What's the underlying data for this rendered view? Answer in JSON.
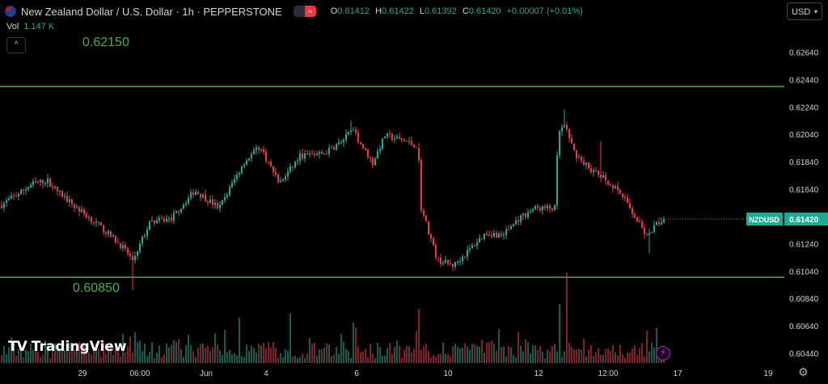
{
  "header": {
    "title": "New Zealand Dollar / U.S. Dollar · 1h · PEPPERSTONE",
    "ohlc": [
      {
        "k": "O",
        "v": "0.61412"
      },
      {
        "k": "H",
        "v": "0.61422"
      },
      {
        "k": "L",
        "v": "0.61392"
      },
      {
        "k": "C",
        "v": "0.61420"
      }
    ],
    "change": "+0.00007 (+0.01%)",
    "pill_icon": "≈"
  },
  "volume": {
    "label": "Vol",
    "value": "1.147 K"
  },
  "collapse_icon": "chevron-up-icon",
  "collapse_glyph": "^",
  "currency": {
    "label": "USD",
    "chevron": "▾"
  },
  "logo": {
    "mark": "TV",
    "text": "TradingView"
  },
  "colors": {
    "up": "#22ab94",
    "down": "#f23645",
    "level": "#4caf50",
    "badge": "#22ab94",
    "text": "#d1d4dc",
    "muted": "#b2b5be"
  },
  "chart_data": {
    "type": "candlestick",
    "symbol": "NZDUSD",
    "last_price": "0.61420",
    "price_axis": {
      "range": [
        0.6035,
        0.6288
      ],
      "ticks": [
        "0.60440",
        "0.60640",
        "0.60840",
        "0.61040",
        "0.61240",
        "0.61440",
        "0.61640",
        "0.61840",
        "0.62040",
        "0.62240",
        "0.62440",
        "0.62640"
      ]
    },
    "x_axis": {
      "labels": [
        "29",
        "06:00",
        "Jun",
        "4",
        "6",
        "10",
        "12",
        "12:00",
        "17",
        "19"
      ]
    },
    "levels": [
      {
        "price": 0.6215,
        "label": "0.62150"
      },
      {
        "price": 0.6085,
        "label": "0.60850"
      }
    ],
    "close_path_anchors": [
      [
        0,
        0.6152
      ],
      [
        20,
        0.616
      ],
      [
        40,
        0.6168
      ],
      [
        58,
        0.617
      ],
      [
        67,
        0.6164
      ],
      [
        90,
        0.6152
      ],
      [
        120,
        0.6138
      ],
      [
        150,
        0.6122
      ],
      [
        163,
        0.6112
      ],
      [
        185,
        0.614
      ],
      [
        210,
        0.6142
      ],
      [
        240,
        0.6163
      ],
      [
        270,
        0.615
      ],
      [
        300,
        0.6183
      ],
      [
        320,
        0.6195
      ],
      [
        345,
        0.6168
      ],
      [
        370,
        0.6188
      ],
      [
        400,
        0.619
      ],
      [
        420,
        0.6198
      ],
      [
        435,
        0.6207
      ],
      [
        460,
        0.6183
      ],
      [
        475,
        0.6203
      ],
      [
        500,
        0.6199
      ],
      [
        516,
        0.6195
      ],
      [
        520,
        0.615
      ],
      [
        540,
        0.6112
      ],
      [
        560,
        0.6108
      ],
      [
        580,
        0.612
      ],
      [
        600,
        0.6132
      ],
      [
        620,
        0.613
      ],
      [
        640,
        0.6142
      ],
      [
        660,
        0.615
      ],
      [
        686,
        0.615
      ],
      [
        689,
        0.6205
      ],
      [
        697,
        0.621
      ],
      [
        710,
        0.619
      ],
      [
        730,
        0.6178
      ],
      [
        750,
        0.617
      ],
      [
        770,
        0.6158
      ],
      [
        790,
        0.6138
      ],
      [
        800,
        0.6128
      ],
      [
        810,
        0.6138
      ],
      [
        820,
        0.6142
      ]
    ],
    "spikes": [
      {
        "x": 433,
        "high": 0.6214
      },
      {
        "x": 697,
        "high": 0.6222
      },
      {
        "x": 743,
        "high": 0.6199
      },
      {
        "x": 803,
        "low": 0.6117
      },
      {
        "x": 163,
        "low": 0.609
      }
    ],
    "volume_spikes": [
      {
        "x": 701,
        "h": 1.0
      },
      {
        "x": 518,
        "h": 0.6
      },
      {
        "x": 357,
        "h": 0.55
      },
      {
        "x": 690,
        "h": 0.65
      },
      {
        "x": 436,
        "h": 0.45
      },
      {
        "x": 296,
        "h": 0.5
      }
    ]
  }
}
